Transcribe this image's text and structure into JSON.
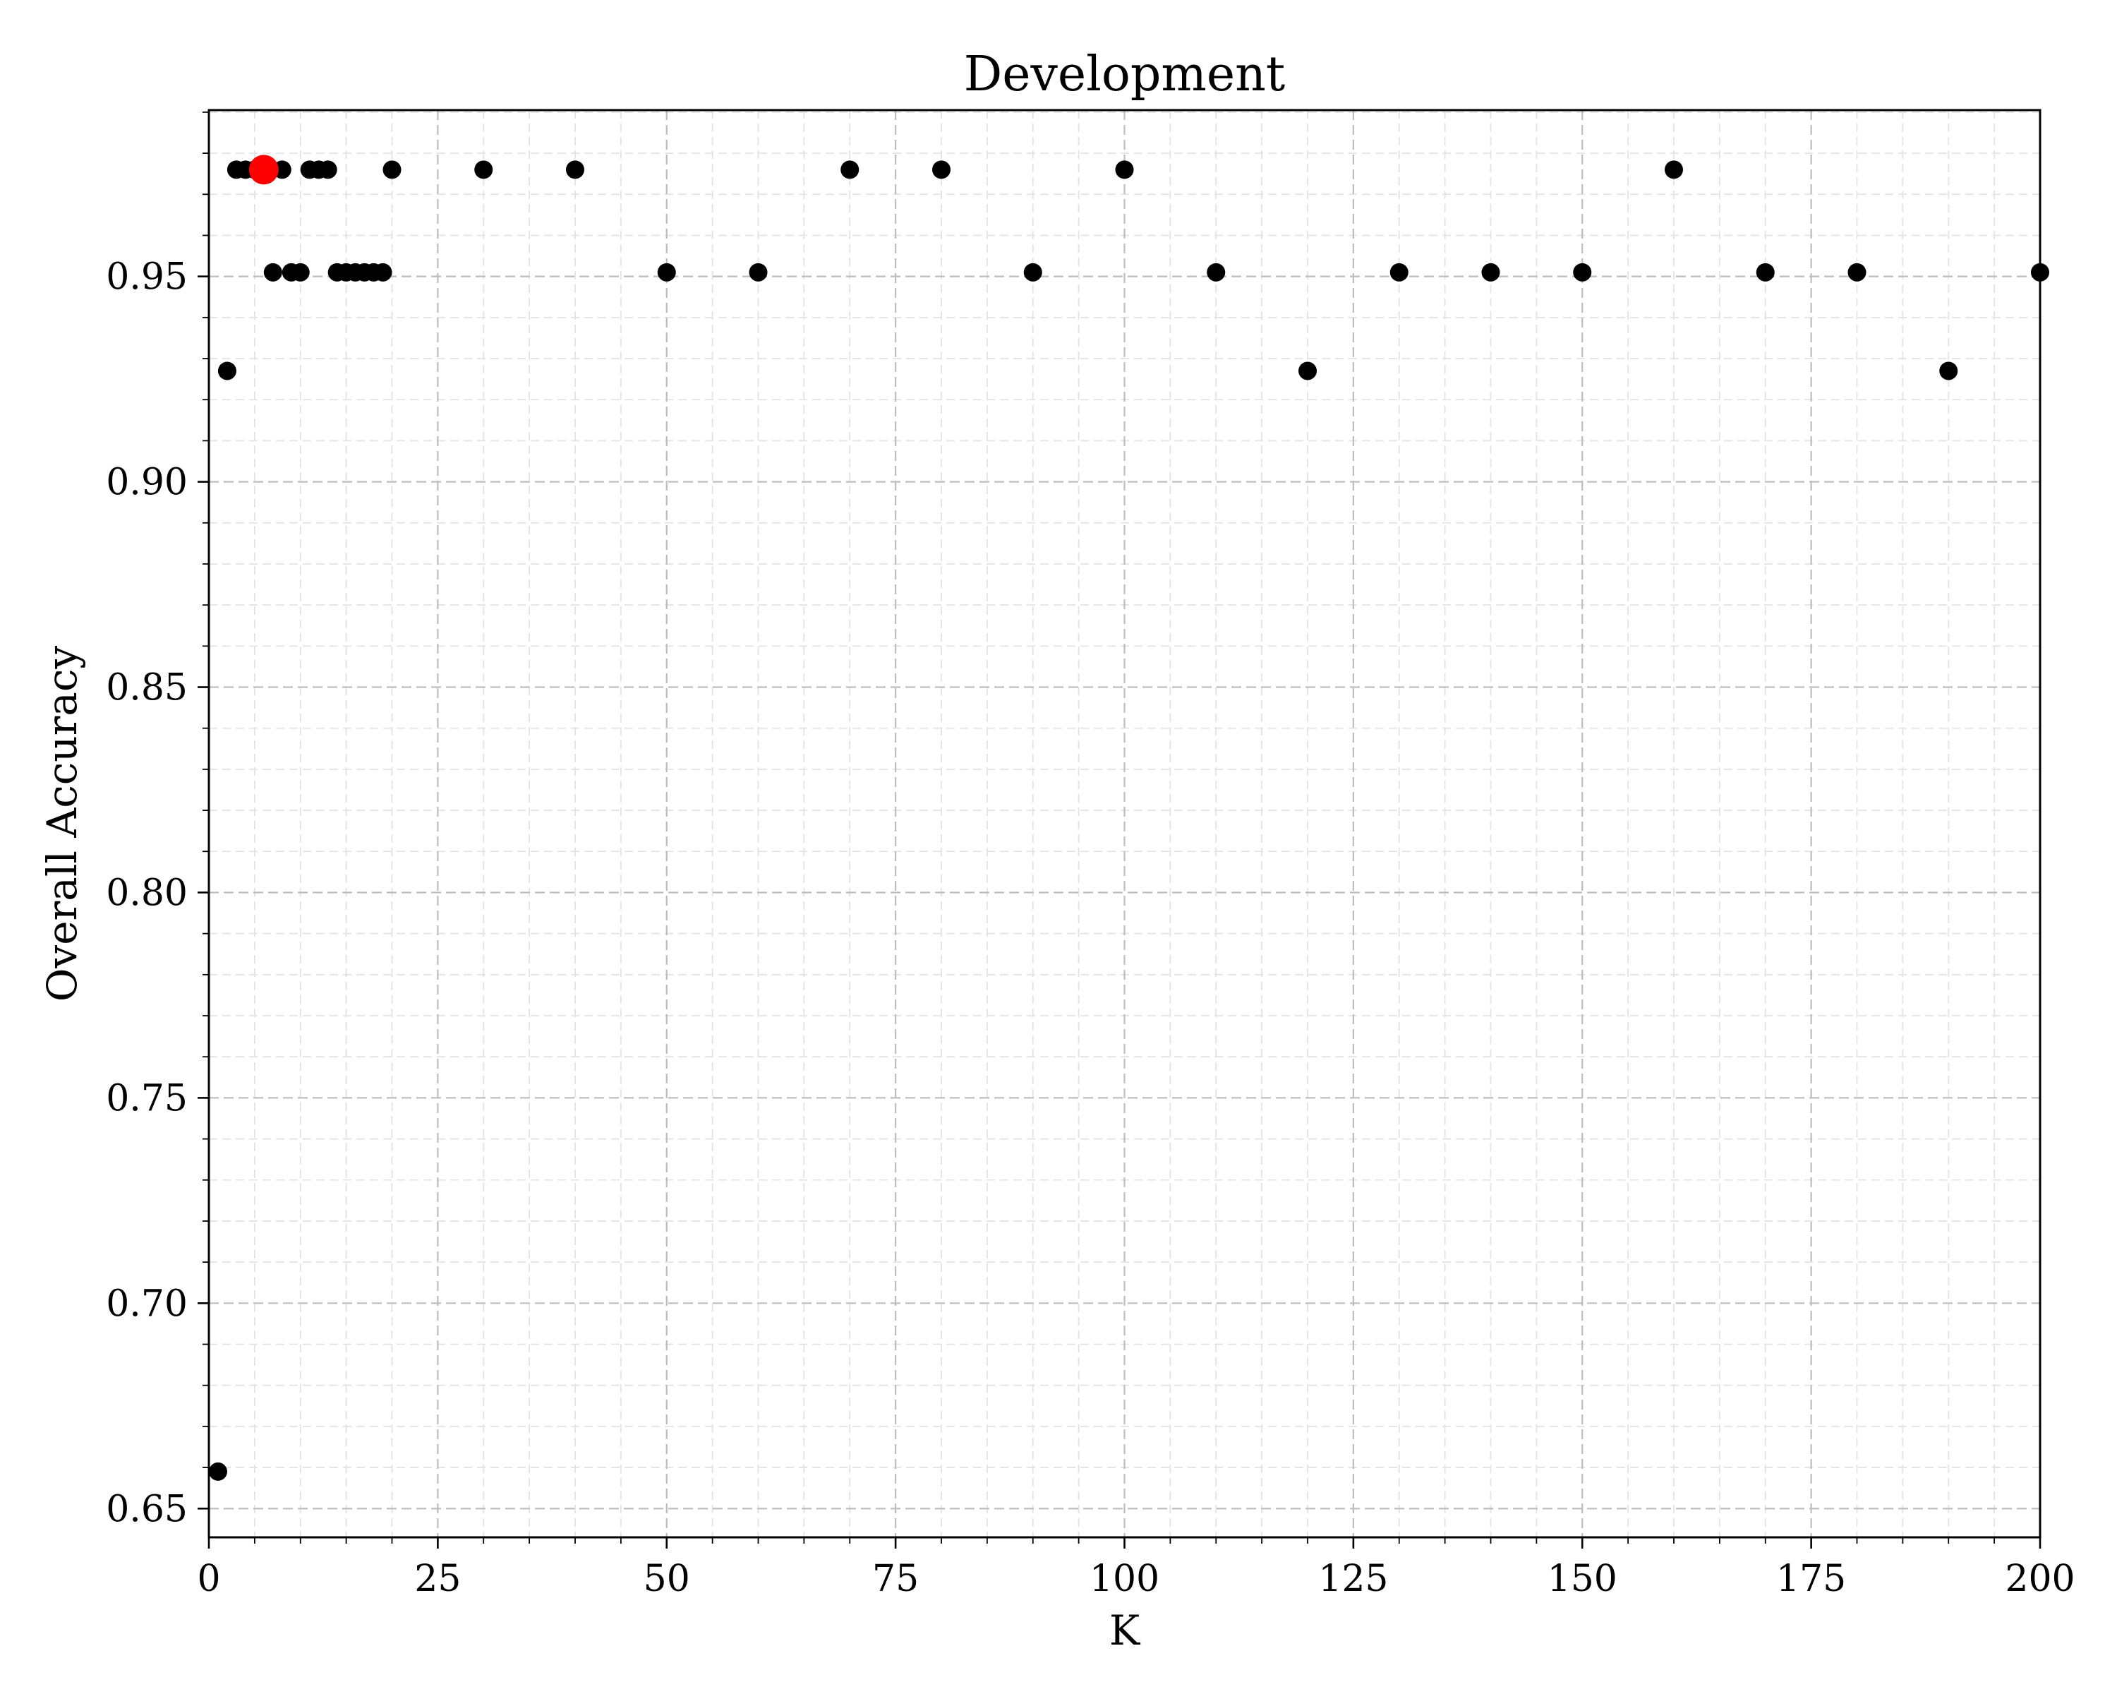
{
  "chart_data": {
    "type": "scatter",
    "title": "Development",
    "xlabel": "K",
    "ylabel": "Overall Accuracy",
    "xlim": [
      0,
      200
    ],
    "ylim": [
      0.643,
      0.9905
    ],
    "xticks": [
      0,
      25,
      50,
      75,
      100,
      125,
      150,
      175,
      200
    ],
    "xtick_labels": [
      "0",
      "25",
      "50",
      "75",
      "100",
      "125",
      "150",
      "175",
      "200"
    ],
    "xminor_step": 5,
    "yticks": [
      0.65,
      0.7,
      0.75,
      0.8,
      0.85,
      0.9,
      0.95
    ],
    "ytick_labels": [
      "0.65",
      "0.70",
      "0.75",
      "0.80",
      "0.85",
      "0.90",
      "0.95"
    ],
    "yminor_step": 0.01,
    "grid": true,
    "point_color": "#000000",
    "highlight_color": "#ff0000",
    "series": [
      {
        "points": [
          [
            1,
            0.659
          ],
          [
            2,
            0.927
          ],
          [
            3,
            0.976
          ],
          [
            4,
            0.976
          ],
          [
            5,
            0.976
          ],
          [
            7,
            0.951
          ],
          [
            8,
            0.976
          ],
          [
            9,
            0.951
          ],
          [
            10,
            0.951
          ],
          [
            11,
            0.976
          ],
          [
            12,
            0.976
          ],
          [
            13,
            0.976
          ],
          [
            14,
            0.951
          ],
          [
            15,
            0.951
          ],
          [
            16,
            0.951
          ],
          [
            17,
            0.951
          ],
          [
            18,
            0.951
          ],
          [
            19,
            0.951
          ],
          [
            20,
            0.976
          ],
          [
            30,
            0.976
          ],
          [
            40,
            0.976
          ],
          [
            50,
            0.951
          ],
          [
            60,
            0.951
          ],
          [
            70,
            0.976
          ],
          [
            80,
            0.976
          ],
          [
            90,
            0.951
          ],
          [
            100,
            0.976
          ],
          [
            110,
            0.951
          ],
          [
            120,
            0.927
          ],
          [
            130,
            0.951
          ],
          [
            140,
            0.951
          ],
          [
            150,
            0.951
          ],
          [
            160,
            0.976
          ],
          [
            170,
            0.951
          ],
          [
            180,
            0.951
          ],
          [
            190,
            0.927
          ],
          [
            200,
            0.951
          ]
        ]
      }
    ],
    "highlight": [
      6,
      0.976
    ]
  }
}
